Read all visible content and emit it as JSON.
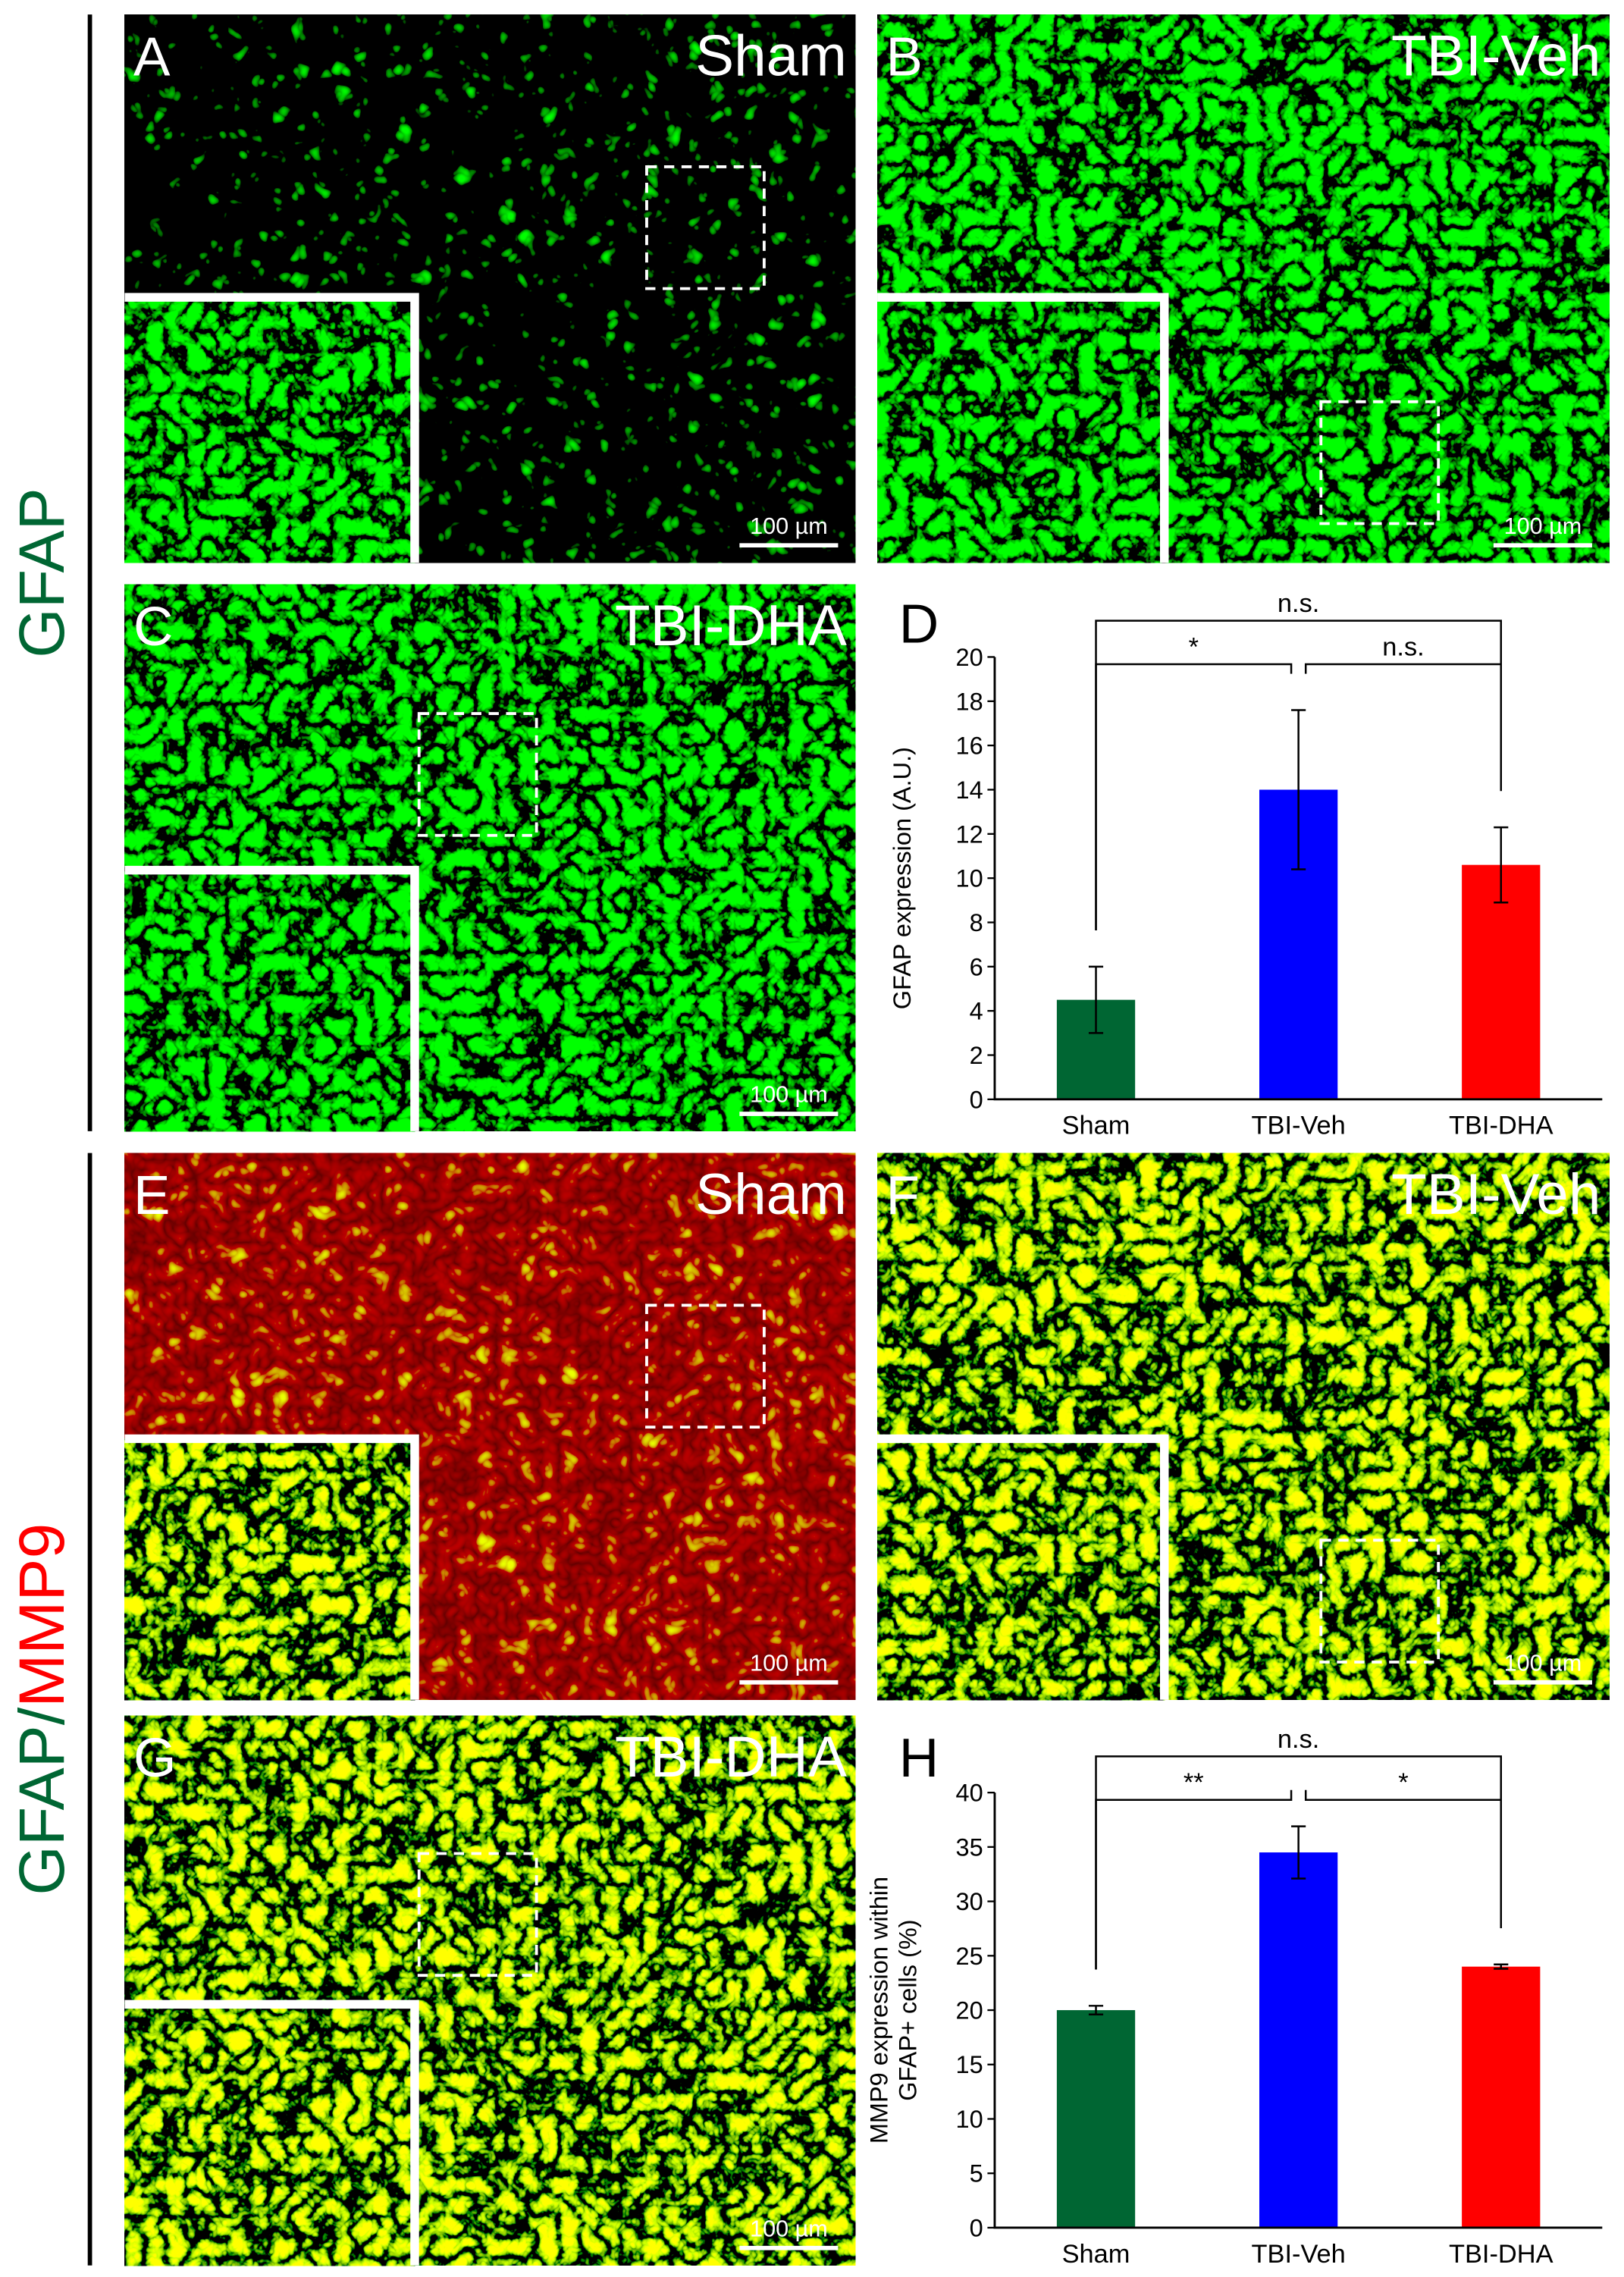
{
  "row_labels": [
    {
      "parts": [
        {
          "text": "GFAP",
          "color": "#006633"
        }
      ]
    },
    {
      "parts": [
        {
          "text": "GFAP",
          "color": "#006633"
        },
        {
          "text": "/",
          "color": "#006633"
        },
        {
          "text": "MMP9",
          "color": "#ff0000"
        }
      ]
    }
  ],
  "panels": [
    {
      "letter": "A",
      "condition": "Sham",
      "scale": "100 µm"
    },
    {
      "letter": "B",
      "condition": "TBI-Veh",
      "scale": "100 µm"
    },
    {
      "letter": "C",
      "condition": "TBI-DHA",
      "scale": "100 µm"
    },
    {
      "letter": "E",
      "condition": "Sham",
      "scale": "100 µm"
    },
    {
      "letter": "F",
      "condition": "TBI-Veh",
      "scale": "100 µm"
    },
    {
      "letter": "G",
      "condition": "TBI-DHA",
      "scale": "100 µm"
    }
  ],
  "chart_data": [
    {
      "type": "bar",
      "panel": "D",
      "y_label": [
        "GFAP expression (A.U.)"
      ],
      "categories": [
        "Sham",
        "TBI-Veh",
        "TBI-DHA"
      ],
      "values": [
        4.5,
        14,
        10.6
      ],
      "errors": [
        1.5,
        3.6,
        1.7
      ],
      "colors": [
        "#006633",
        "#0000ff",
        "#ff0000"
      ],
      "ylim": [
        0,
        20
      ],
      "yticks": [
        0,
        2,
        4,
        6,
        8,
        10,
        12,
        14,
        16,
        18,
        20
      ],
      "comparisons": [
        {
          "label": "*",
          "between": [
            "Sham",
            "TBI-Veh"
          ]
        },
        {
          "label": "n.s.",
          "between": [
            "TBI-Veh",
            "TBI-DHA"
          ]
        },
        {
          "label": "n.s.",
          "between": [
            "Sham",
            "TBI-DHA"
          ]
        }
      ]
    },
    {
      "type": "bar",
      "panel": "H",
      "y_label": [
        "MMP9 expression within",
        "GFAP+ cells (%)"
      ],
      "categories": [
        "Sham",
        "TBI-Veh",
        "TBI-DHA"
      ],
      "values": [
        20,
        34.5,
        24
      ],
      "errors": [
        0.4,
        2.4,
        0.2
      ],
      "colors": [
        "#006633",
        "#0000ff",
        "#ff0000"
      ],
      "ylim": [
        0,
        40
      ],
      "yticks": [
        0,
        5,
        10,
        15,
        20,
        25,
        30,
        35,
        40
      ],
      "comparisons": [
        {
          "label": "**",
          "between": [
            "Sham",
            "TBI-Veh"
          ]
        },
        {
          "label": "*",
          "between": [
            "TBI-Veh",
            "TBI-DHA"
          ]
        },
        {
          "label": "n.s.",
          "between": [
            "Sham",
            "TBI-DHA"
          ]
        }
      ]
    }
  ]
}
